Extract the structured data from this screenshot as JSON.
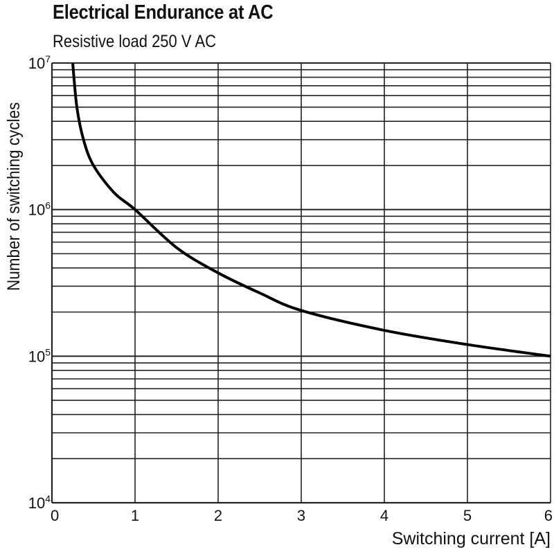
{
  "title": "Electrical Endurance at AC",
  "subtitle": "Resistive load 250 V AC",
  "chart_data": {
    "type": "line",
    "title": "Electrical Endurance at AC",
    "subtitle": "Resistive load 250 V AC",
    "xlabel": "Switching current [A]",
    "ylabel": "Number of switching cycles",
    "xlim": [
      0,
      6
    ],
    "ylim": [
      10000,
      10000000
    ],
    "yscale": "log",
    "grid": true,
    "x_ticks": [
      "0",
      "1",
      "2",
      "3",
      "4",
      "5",
      "6"
    ],
    "y_ticks": [
      {
        "base": "10",
        "exp": "4"
      },
      {
        "base": "10",
        "exp": "5"
      },
      {
        "base": "10",
        "exp": "6"
      },
      {
        "base": "10",
        "exp": "7"
      }
    ],
    "series": [
      {
        "color": "#000000",
        "x": [
          0.25,
          0.3,
          0.38,
          0.5,
          0.75,
          1,
          1.5,
          2,
          2.5,
          3,
          4,
          5,
          6
        ],
        "y": [
          10000000,
          5000000,
          3000000,
          2000000,
          1300000,
          1000000,
          550000,
          370000,
          270000,
          205000,
          150000,
          120000,
          100000
        ]
      }
    ]
  }
}
